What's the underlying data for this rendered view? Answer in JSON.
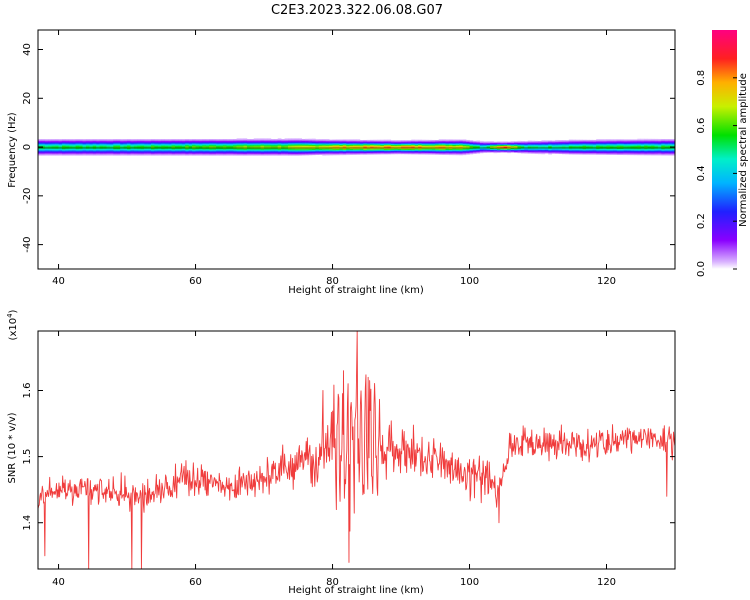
{
  "title": "C2E3.2023.322.06.08.G07",
  "chart_data": [
    {
      "type": "heatmap",
      "xlabel": "Height of straight line (km)",
      "ylabel": "Frequency (Hz)",
      "xlim": [
        37,
        130
      ],
      "ylim": [
        -50,
        48
      ],
      "x_ticks": [
        40,
        60,
        80,
        100,
        120
      ],
      "y_ticks": [
        -40,
        -20,
        0,
        20,
        40
      ],
      "colorbar": {
        "label": "Normalized spectral amplitude",
        "range": [
          0,
          1
        ],
        "ticks": [
          "0.0",
          "0.2",
          "0.4",
          "0.6",
          "0.8"
        ],
        "tick_values": [
          0.0,
          0.2,
          0.4,
          0.6,
          0.8
        ],
        "colormap": "rainbow (white → purple → blue → cyan → green → yellow → orange → red → magenta)"
      },
      "band": {
        "center_frequency": 0,
        "profile": [
          {
            "x": 38,
            "peak": 0.55,
            "halfwidth": 2.0
          },
          {
            "x": 50,
            "peak": 0.55,
            "halfwidth": 2.0
          },
          {
            "x": 65,
            "peak": 0.62,
            "halfwidth": 2.0
          },
          {
            "x": 75,
            "peak": 0.66,
            "halfwidth": 2.0
          },
          {
            "x": 80,
            "peak": 0.75,
            "halfwidth": 1.8
          },
          {
            "x": 90,
            "peak": 0.8,
            "halfwidth": 1.6
          },
          {
            "x": 99,
            "peak": 0.75,
            "halfwidth": 1.8
          },
          {
            "x": 102,
            "peak": 0.48,
            "halfwidth": 1.4
          },
          {
            "x": 105,
            "peak": 0.92,
            "halfwidth": 1.2
          },
          {
            "x": 108,
            "peak": 0.5,
            "halfwidth": 1.5
          },
          {
            "x": 115,
            "peak": 0.55,
            "halfwidth": 1.8
          },
          {
            "x": 130,
            "peak": 0.55,
            "halfwidth": 2.0
          }
        ]
      }
    },
    {
      "type": "line",
      "xlabel": "Height of straight line (km)",
      "ylabel": "SNR (10 * v/v)",
      "y_multiplier_label": "(x10",
      "y_multiplier_exp": "4",
      "y_multiplier_close": ")",
      "xlim": [
        37,
        130
      ],
      "ylim": [
        1.33,
        1.69
      ],
      "x_ticks": [
        40,
        60,
        80,
        100,
        120
      ],
      "y_ticks": [
        "1.4",
        "1.5",
        "1.6"
      ],
      "y_tick_values": [
        1.4,
        1.5,
        1.6
      ],
      "color": "#f03c3c",
      "series": [
        {
          "x": [
            37,
            40,
            45,
            50,
            55,
            60,
            65,
            70,
            75,
            78,
            80,
            82,
            83.5,
            85,
            88,
            92,
            96,
            100,
            103,
            104,
            106,
            110,
            115,
            120,
            125,
            130
          ],
          "y": [
            1.44,
            1.45,
            1.45,
            1.44,
            1.45,
            1.47,
            1.45,
            1.47,
            1.49,
            1.5,
            1.52,
            1.5,
            1.54,
            1.52,
            1.51,
            1.5,
            1.49,
            1.47,
            1.47,
            1.44,
            1.52,
            1.52,
            1.52,
            1.52,
            1.53,
            1.52
          ],
          "noise": [
            0.02,
            0.02,
            0.02,
            0.02,
            0.02,
            0.025,
            0.02,
            0.025,
            0.03,
            0.04,
            0.06,
            0.07,
            0.07,
            0.06,
            0.04,
            0.03,
            0.025,
            0.025,
            0.03,
            0.02,
            0.02,
            0.02,
            0.02,
            0.02,
            0.02,
            0.02
          ]
        }
      ],
      "spikes_down": [
        {
          "x": 38.0,
          "y": 1.35
        },
        {
          "x": 44.4,
          "y": 1.33
        },
        {
          "x": 50.7,
          "y": 1.33
        },
        {
          "x": 52.1,
          "y": 1.33
        },
        {
          "x": 82.4,
          "y": 1.34
        },
        {
          "x": 104.3,
          "y": 1.4
        },
        {
          "x": 128.8,
          "y": 1.44
        }
      ],
      "spikes_up": [
        {
          "x": 83.6,
          "y": 1.69
        },
        {
          "x": 81.6,
          "y": 1.63
        },
        {
          "x": 85.2,
          "y": 1.62
        },
        {
          "x": 78.6,
          "y": 1.6
        }
      ]
    }
  ]
}
